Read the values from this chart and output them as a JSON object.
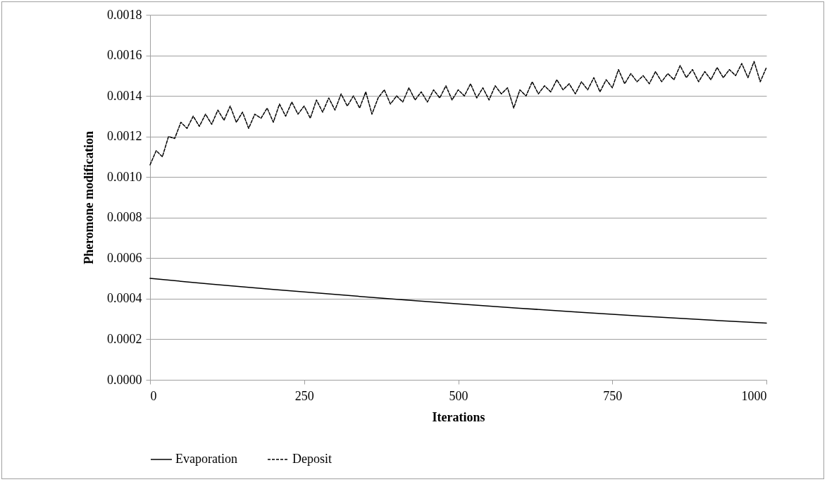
{
  "chart_data": {
    "type": "line",
    "xlabel": "Iterations",
    "ylabel": "Pheromone modification",
    "xlim": [
      0,
      1000
    ],
    "xticks": [
      0,
      250,
      500,
      750,
      1000
    ],
    "ylim": [
      0,
      0.0018
    ],
    "yticks": [
      {
        "value": 0,
        "label": "0.0000"
      },
      0.0002,
      0.0004,
      0.0006,
      0.0008,
      {
        "value": 0.001,
        "label": "0.0010"
      },
      0.0012,
      0.0014,
      0.0016,
      0.0018
    ],
    "grid": "y",
    "legend": "bottom",
    "series": [
      {
        "name": "Evaporation",
        "color": "#000000",
        "line_style": "solid",
        "x": [
          0,
          100,
          200,
          300,
          400,
          500,
          600,
          700,
          800,
          900,
          1000
        ],
        "values": [
          0.0005,
          0.000472,
          0.000446,
          0.000421,
          0.000397,
          0.000374,
          0.000353,
          0.000333,
          0.000314,
          0.000296,
          0.00028
        ]
      },
      {
        "name": "Deposit",
        "color": "#000000",
        "line_style": "dashed",
        "x": [
          0,
          10,
          20,
          30,
          40,
          50,
          60,
          70,
          80,
          90,
          100,
          110,
          120,
          130,
          140,
          150,
          160,
          170,
          180,
          190,
          200,
          210,
          220,
          230,
          240,
          250,
          260,
          270,
          280,
          290,
          300,
          310,
          320,
          330,
          340,
          350,
          360,
          370,
          380,
          390,
          400,
          410,
          420,
          430,
          440,
          450,
          460,
          470,
          480,
          490,
          500,
          510,
          520,
          530,
          540,
          550,
          560,
          570,
          580,
          590,
          600,
          610,
          620,
          630,
          640,
          650,
          660,
          670,
          680,
          690,
          700,
          710,
          720,
          730,
          740,
          750,
          760,
          770,
          780,
          790,
          800,
          810,
          820,
          830,
          840,
          850,
          860,
          870,
          880,
          890,
          900,
          910,
          920,
          930,
          940,
          950,
          960,
          970,
          980,
          990,
          1000
        ],
        "values": [
          0.00106,
          0.00113,
          0.0011,
          0.0012,
          0.00119,
          0.00127,
          0.00124,
          0.0013,
          0.00125,
          0.00131,
          0.00126,
          0.00133,
          0.00128,
          0.00135,
          0.00127,
          0.00132,
          0.00124,
          0.00131,
          0.00129,
          0.00134,
          0.00127,
          0.00136,
          0.0013,
          0.00137,
          0.00131,
          0.00135,
          0.00129,
          0.00138,
          0.00132,
          0.00139,
          0.00133,
          0.00141,
          0.00135,
          0.0014,
          0.00134,
          0.00142,
          0.00131,
          0.00139,
          0.00143,
          0.00136,
          0.0014,
          0.00137,
          0.00144,
          0.00138,
          0.00142,
          0.00137,
          0.00143,
          0.00139,
          0.00145,
          0.00138,
          0.00143,
          0.0014,
          0.00146,
          0.00139,
          0.00144,
          0.00138,
          0.00145,
          0.00141,
          0.00144,
          0.00134,
          0.00143,
          0.0014,
          0.00147,
          0.00141,
          0.00145,
          0.00142,
          0.00148,
          0.00143,
          0.00146,
          0.00141,
          0.00147,
          0.00143,
          0.00149,
          0.00142,
          0.00148,
          0.00144,
          0.00153,
          0.00146,
          0.00151,
          0.00147,
          0.0015,
          0.00146,
          0.00152,
          0.00147,
          0.00151,
          0.00148,
          0.00155,
          0.00149,
          0.00153,
          0.00147,
          0.00152,
          0.00148,
          0.00154,
          0.00149,
          0.00153,
          0.0015,
          0.00156,
          0.00149,
          0.00157,
          0.00147,
          0.00154
        ]
      }
    ]
  }
}
